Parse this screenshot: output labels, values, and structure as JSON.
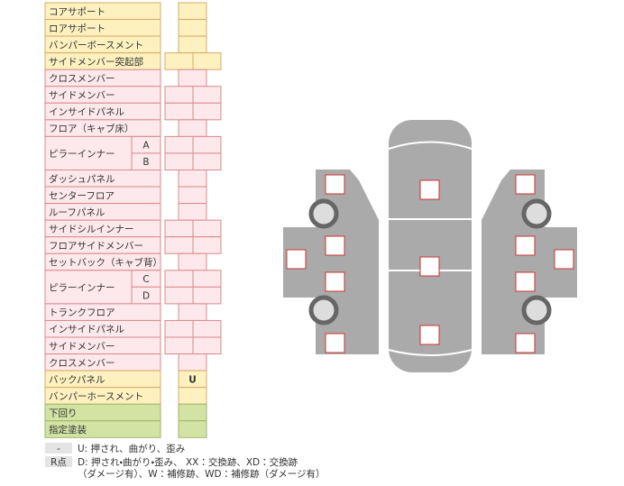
{
  "table": {
    "rows": [
      {
        "label": "コアサポート"
      },
      {
        "label": "ロアサポート"
      },
      {
        "label": "バンパーボースメント"
      },
      {
        "label": "サイドメンバー突起部"
      },
      {
        "label": "クロスメンバー"
      },
      {
        "label": "サイドメンバー"
      },
      {
        "label": "インサイドパネル"
      },
      {
        "label": "フロア（キャブ床）"
      },
      {
        "label": "ピラーインナー",
        "sub": [
          "A",
          "B"
        ]
      },
      {
        "label": "ダッシュパネル"
      },
      {
        "label": "センターフロア"
      },
      {
        "label": "ルーフパネル"
      },
      {
        "label": "サイドシルインナー"
      },
      {
        "label": "フロアサイドメンバー"
      },
      {
        "label": "セットバック（キャブ背）"
      },
      {
        "label": "ピラーインナー",
        "sub": [
          "C",
          "D"
        ]
      },
      {
        "label": "トランクフロア"
      },
      {
        "label": "インサイドパネル"
      },
      {
        "label": "サイドメンバー"
      },
      {
        "label": "クロスメンバー"
      },
      {
        "label": "バックパネル",
        "mark": "U"
      },
      {
        "label": "バンパーホースメント"
      },
      {
        "label": "下回り"
      },
      {
        "label": "指定塗装"
      }
    ]
  },
  "legend": [
    {
      "key": "-",
      "lines": [
        "U: 押され、曲がり、歪み"
      ]
    },
    {
      "key": "R点",
      "lines": [
        "D: 押され・曲がり・歪み、 XX：交換跡、XD：交換跡",
        "（ダメージ有）、W：補修跡、WD：補修跡（ダメージ有）"
      ]
    }
  ]
}
